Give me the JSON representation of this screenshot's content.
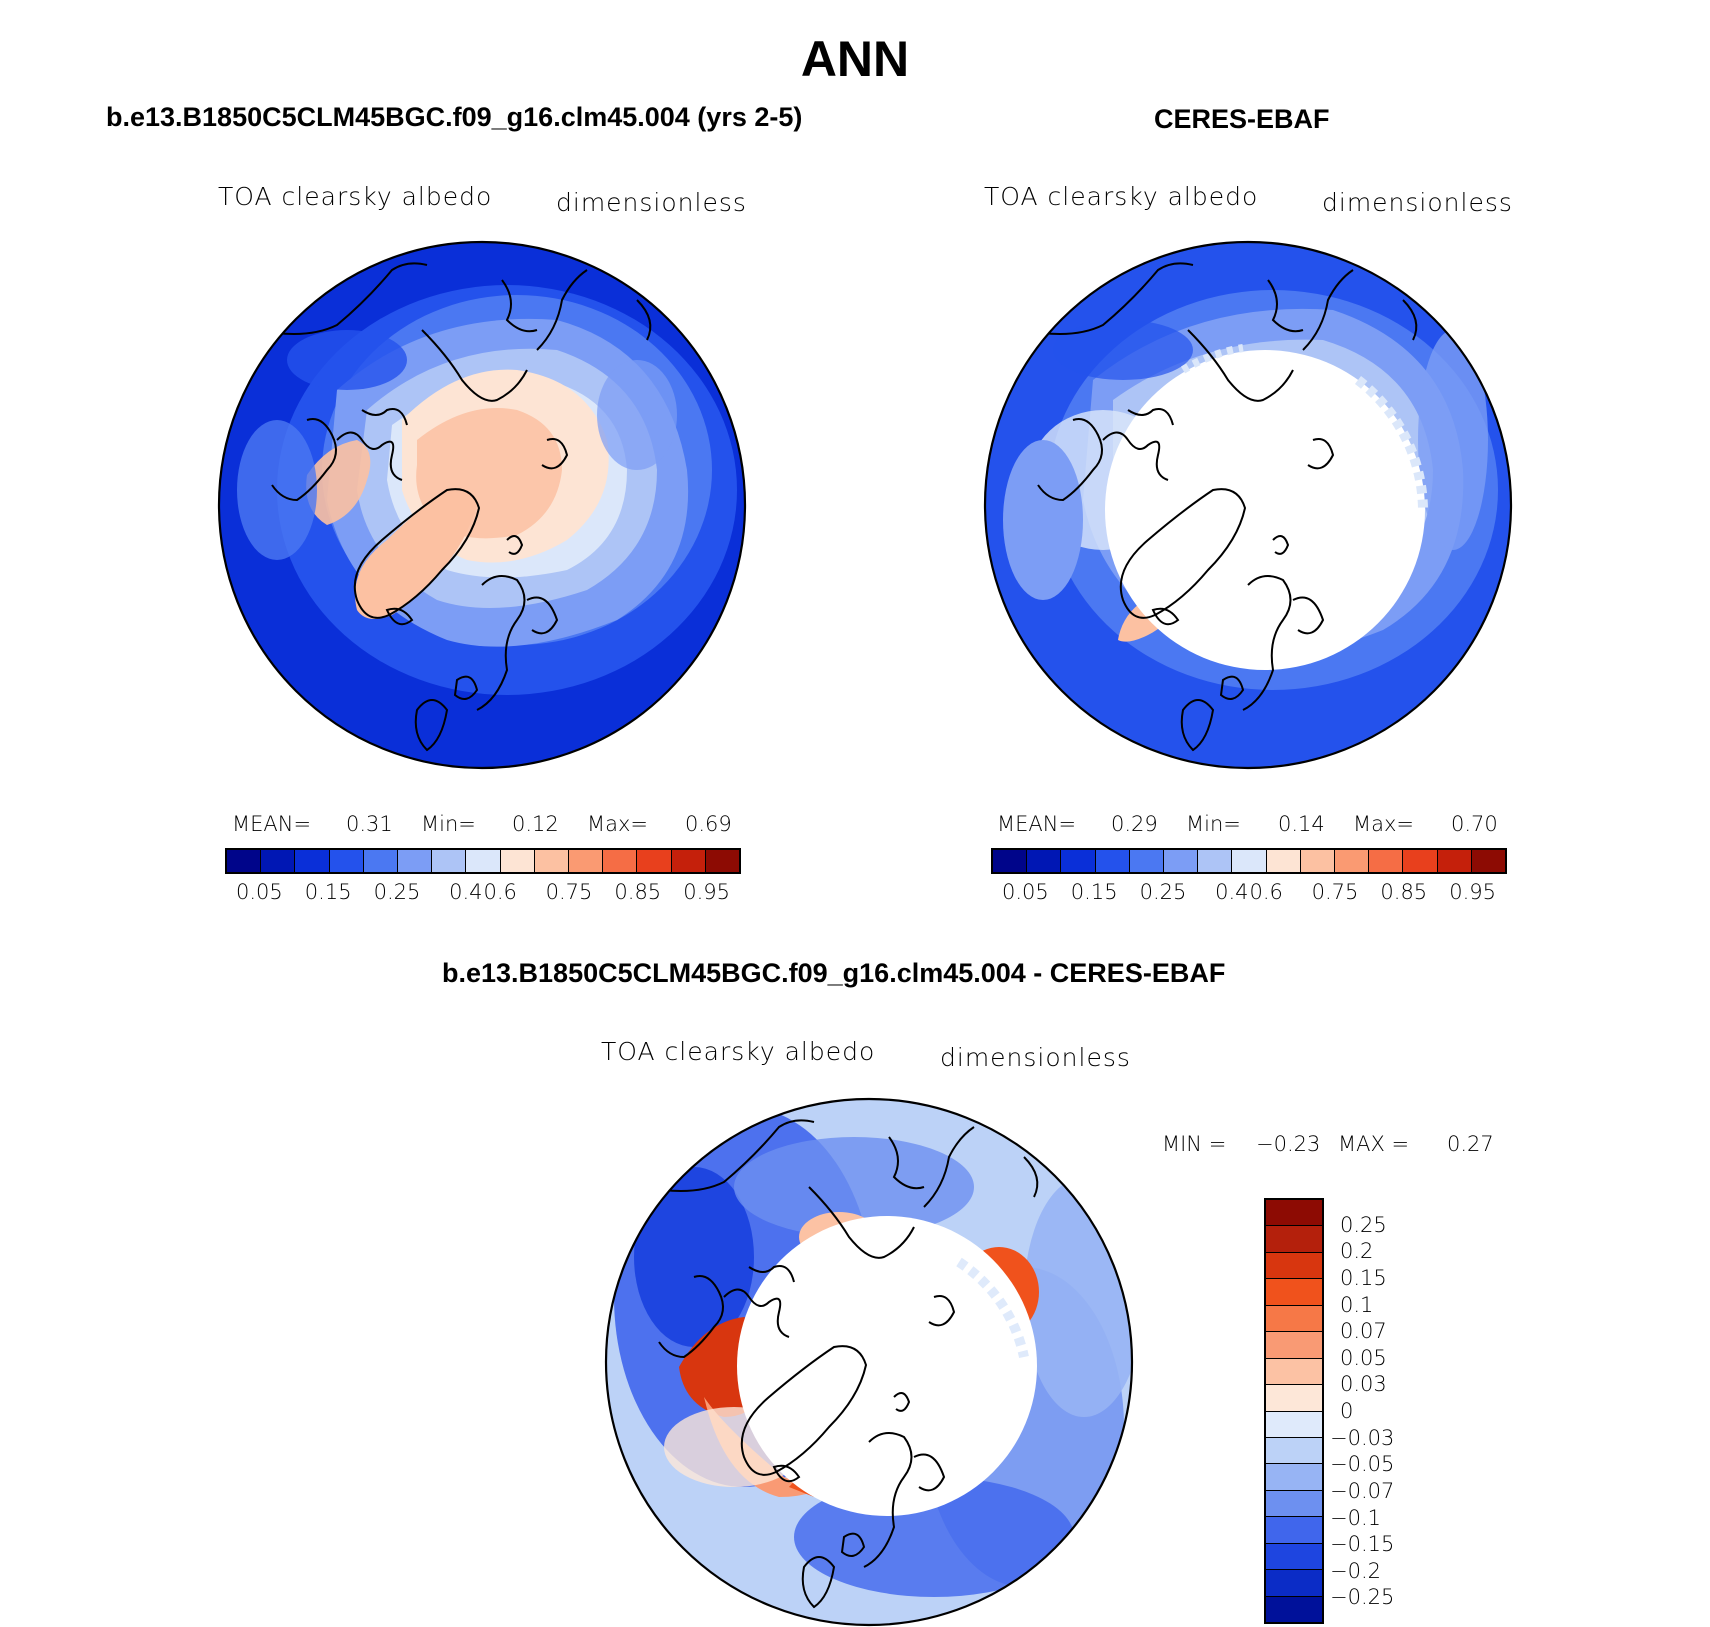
{
  "figure_title": "ANN",
  "panels": {
    "model": {
      "title": "b.e13.B1850C5CLM45BGC.f09_g16.clm45.004 (yrs 2-5)",
      "variable": "TOA clearsky albedo",
      "units": "dimensionless",
      "mean_label": "MEAN=",
      "mean_value": "0.31",
      "min_label": "Min=",
      "min_value": "0.12",
      "max_label": "Max=",
      "max_value": "0.69"
    },
    "obs": {
      "title": "CERES-EBAF",
      "variable": "TOA clearsky albedo",
      "units": "dimensionless",
      "mean_label": "MEAN=",
      "mean_value": "0.29",
      "min_label": "Min=",
      "min_value": "0.14",
      "max_label": "Max=",
      "max_value": "0.70"
    },
    "diff": {
      "title": "b.e13.B1850C5CLM45BGC.f09_g16.clm45.004 - CERES-EBAF",
      "variable": "TOA clearsky albedo",
      "units": "dimensionless",
      "min_label": "MIN =",
      "min_value": "−0.23",
      "max_label": "MAX =",
      "max_value": "0.27"
    }
  },
  "colorbar_main": {
    "colors": [
      "#00058a",
      "#0017b4",
      "#0a2fd8",
      "#2452ec",
      "#4b78f2",
      "#7c9df5",
      "#adc4f6",
      "#dbe7fa",
      "#fde4d4",
      "#fcc1a2",
      "#fa9a72",
      "#f56d45",
      "#e8401d",
      "#c5200b",
      "#8d0b03"
    ],
    "ticks": [
      "0.05",
      "0.15",
      "0.25",
      "0.4",
      "0.6",
      "0.75",
      "0.85",
      "0.95"
    ]
  },
  "colorbar_diff": {
    "colors": [
      "#8d0b03",
      "#b4200c",
      "#d8360f",
      "#f0521c",
      "#f67847",
      "#f99a74",
      "#fcc2a4",
      "#fde7d8",
      "#dfeafb",
      "#bcd2f7",
      "#97b4f4",
      "#6d90f0",
      "#4066ec",
      "#1e45e0",
      "#0b2cc6",
      "#00119a"
    ],
    "ticks": [
      "0.25",
      "0.2",
      "0.15",
      "0.1",
      "0.07",
      "0.05",
      "0.03",
      "0",
      "−0.03",
      "−0.05",
      "−0.07",
      "−0.1",
      "−0.15",
      "−0.2",
      "−0.25"
    ]
  }
}
